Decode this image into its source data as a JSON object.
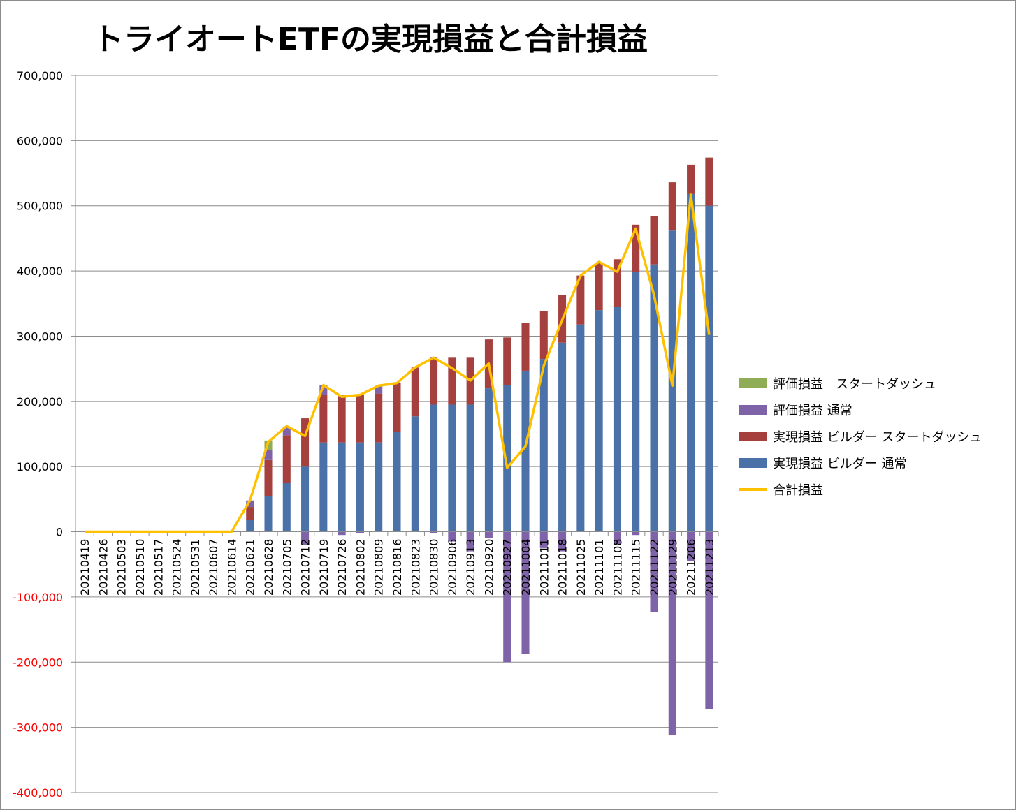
{
  "chart_data": {
    "type": "bar",
    "title": "トライオートETFの実現損益と合計損益",
    "xlabel": "",
    "ylabel": "",
    "ylim": [
      -400000,
      700000
    ],
    "y_ticks": [
      700000,
      600000,
      500000,
      400000,
      300000,
      200000,
      100000,
      0,
      -100000,
      -200000,
      -300000,
      -400000
    ],
    "y_tick_labels": [
      "700,000",
      "600,000",
      "500,000",
      "400,000",
      "300,000",
      "200,000",
      "100,000",
      "0",
      "-100,000",
      "-200,000",
      "-300,000",
      "-400,000"
    ],
    "negative_tick_color": "#ff0000",
    "grid": true,
    "stacked": true,
    "legend_position": "right",
    "categories": [
      "20210419",
      "20210426",
      "20210503",
      "20210510",
      "20210517",
      "20210524",
      "20210531",
      "20210607",
      "20210614",
      "20210621",
      "20210628",
      "20210705",
      "20210712",
      "20210719",
      "20210726",
      "20210802",
      "20210809",
      "20210816",
      "20210823",
      "20210830",
      "20210906",
      "20210913",
      "20210920",
      "20210927",
      "20211004",
      "20211011",
      "20211018",
      "20211025",
      "20211101",
      "20211108",
      "20211115",
      "20211122",
      "20211129",
      "20211206",
      "20211213"
    ],
    "series": [
      {
        "name": "実現損益 ビルダー　通常",
        "type": "bar",
        "color": "#4a72a8",
        "values": [
          0,
          0,
          0,
          0,
          0,
          0,
          0,
          0,
          0,
          18000,
          55000,
          75000,
          100000,
          137000,
          137000,
          137000,
          137000,
          153000,
          177000,
          195000,
          195000,
          195000,
          220000,
          225000,
          247000,
          265000,
          290000,
          318000,
          340000,
          345000,
          398000,
          410000,
          462000,
          518000,
          500000
        ]
      },
      {
        "name": "実現損益 ビルダー　スタートダッシュ",
        "type": "bar",
        "color": "#a5403f",
        "values": [
          0,
          0,
          0,
          0,
          0,
          0,
          0,
          0,
          0,
          20000,
          55000,
          73000,
          74000,
          73000,
          73000,
          73000,
          75000,
          75000,
          75000,
          73000,
          73000,
          73000,
          75000,
          73000,
          73000,
          74000,
          73000,
          75000,
          73000,
          73000,
          73000,
          74000,
          74000,
          45000,
          74000
        ]
      },
      {
        "name": "評価損益　通常",
        "type": "bar",
        "color": "#7f63a8",
        "values": [
          0,
          0,
          0,
          0,
          0,
          0,
          0,
          0,
          0,
          10000,
          15000,
          12000,
          -20000,
          15000,
          -5000,
          -2000,
          12000,
          0,
          0,
          -2000,
          -15000,
          -30000,
          -10000,
          -200000,
          -187000,
          -25000,
          -30000,
          0,
          0,
          -20000,
          -5000,
          -123000,
          -312000,
          -45000,
          -272000
        ]
      },
      {
        "name": "評価損益　スタートダッシュ",
        "type": "bar",
        "color": "#8fac56",
        "values": [
          0,
          0,
          0,
          0,
          0,
          0,
          0,
          0,
          0,
          0,
          15000,
          0,
          0,
          0,
          0,
          0,
          0,
          0,
          0,
          0,
          0,
          0,
          0,
          0,
          0,
          0,
          0,
          0,
          0,
          0,
          0,
          0,
          0,
          0,
          0
        ]
      },
      {
        "name": "合計損益",
        "type": "line",
        "color": "#ffc000",
        "values": [
          0,
          0,
          0,
          0,
          0,
          0,
          0,
          0,
          0,
          48000,
          138000,
          162000,
          147000,
          225000,
          207000,
          210000,
          224000,
          228000,
          252000,
          267000,
          251000,
          232000,
          258000,
          98000,
          131000,
          255000,
          325000,
          393000,
          414000,
          399000,
          465000,
          363000,
          224000,
          517000,
          302000
        ]
      }
    ],
    "legend": [
      {
        "label": "評価損益　スタートダッシュ",
        "color": "#8fac56",
        "kind": "bar"
      },
      {
        "label": "評価損益  通常",
        "color": "#7f63a8",
        "kind": "bar"
      },
      {
        "label": "実現損益 ビルダー  スタートダッシュ",
        "color": "#a5403f",
        "kind": "bar"
      },
      {
        "label": "実現損益 ビルダー  通常",
        "color": "#4a72a8",
        "kind": "bar"
      },
      {
        "label": "合計損益",
        "color": "#ffc000",
        "kind": "line"
      }
    ]
  }
}
